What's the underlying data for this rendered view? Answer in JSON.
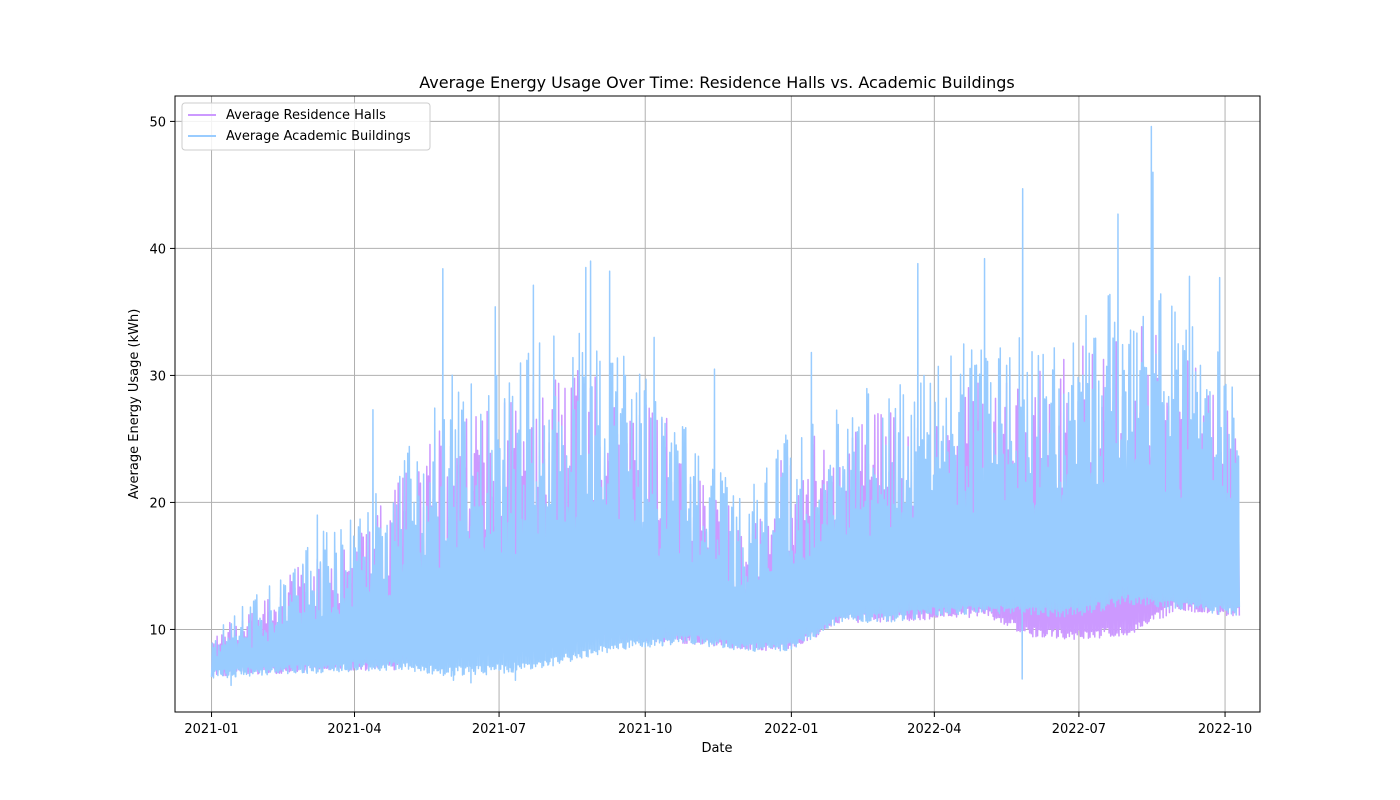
{
  "chart_data": {
    "type": "line",
    "title": "Average Energy Usage Over Time: Residence Halls vs. Academic Buildings",
    "xlabel": "Date",
    "ylabel": "Average Energy Usage (kWh)",
    "x_range": [
      "2020-12-09",
      "2022-10-23"
    ],
    "ylim": [
      3.5,
      52
    ],
    "x_ticks": [
      "2021-01",
      "2021-04",
      "2021-07",
      "2021-10",
      "2022-01",
      "2022-04",
      "2022-07",
      "2022-10"
    ],
    "y_ticks": [
      10,
      20,
      30,
      40,
      50
    ],
    "grid": true,
    "legend_position": "top-left",
    "data_range": [
      "2021-01-01",
      "2022-10-10"
    ],
    "series": [
      {
        "name": "Average Residence Halls",
        "color": "#cc99ff",
        "profile": [
          {
            "date": "2021-01-01",
            "low": 6.3,
            "high": 10.0
          },
          {
            "date": "2021-02-01",
            "low": 6.5,
            "high": 12.0
          },
          {
            "date": "2021-03-01",
            "low": 6.6,
            "high": 15.5
          },
          {
            "date": "2021-04-01",
            "low": 6.8,
            "high": 17.0
          },
          {
            "date": "2021-05-01",
            "low": 6.8,
            "high": 22.0
          },
          {
            "date": "2021-06-01",
            "low": 9.8,
            "high": 27.0
          },
          {
            "date": "2021-07-01",
            "low": 9.9,
            "high": 29.0
          },
          {
            "date": "2021-08-01",
            "low": 9.0,
            "high": 30.0
          },
          {
            "date": "2021-09-01",
            "low": 9.0,
            "high": 31.0
          },
          {
            "date": "2021-10-01",
            "low": 9.0,
            "high": 28.0
          },
          {
            "date": "2021-11-01",
            "low": 8.8,
            "high": 25.0
          },
          {
            "date": "2021-12-01",
            "low": 8.4,
            "high": 18.0
          },
          {
            "date": "2022-01-01",
            "low": 8.3,
            "high": 25.0
          },
          {
            "date": "2022-02-01",
            "low": 10.5,
            "high": 26.0
          },
          {
            "date": "2022-03-01",
            "low": 10.6,
            "high": 28.0
          },
          {
            "date": "2022-04-01",
            "low": 10.8,
            "high": 28.0
          },
          {
            "date": "2022-05-01",
            "low": 11.0,
            "high": 30.0
          },
          {
            "date": "2022-06-01",
            "low": 9.4,
            "high": 31.0
          },
          {
            "date": "2022-07-01",
            "low": 9.2,
            "high": 33.0
          },
          {
            "date": "2022-08-01",
            "low": 9.5,
            "high": 35.0
          },
          {
            "date": "2022-09-01",
            "low": 11.5,
            "high": 33.0
          },
          {
            "date": "2022-10-10",
            "low": 11.0,
            "high": 27.0
          }
        ]
      },
      {
        "name": "Average Academic Buildings",
        "color": "#99ccff",
        "profile": [
          {
            "date": "2021-01-01",
            "low": 6.0,
            "high": 10.0
          },
          {
            "date": "2021-02-01",
            "low": 6.4,
            "high": 13.0
          },
          {
            "date": "2021-03-01",
            "low": 6.5,
            "high": 16.5
          },
          {
            "date": "2021-04-01",
            "low": 6.7,
            "high": 20.0
          },
          {
            "date": "2021-05-01",
            "low": 6.8,
            "high": 24.0
          },
          {
            "date": "2021-06-01",
            "low": 6.3,
            "high": 30.0
          },
          {
            "date": "2021-07-01",
            "low": 6.5,
            "high": 31.0
          },
          {
            "date": "2021-08-01",
            "low": 7.0,
            "high": 33.0
          },
          {
            "date": "2021-09-01",
            "low": 8.0,
            "high": 35.0
          },
          {
            "date": "2021-10-01",
            "low": 8.6,
            "high": 30.0
          },
          {
            "date": "2021-11-01",
            "low": 8.8,
            "high": 26.0
          },
          {
            "date": "2021-12-01",
            "low": 8.3,
            "high": 20.0
          },
          {
            "date": "2022-01-01",
            "low": 8.2,
            "high": 26.0
          },
          {
            "date": "2022-02-01",
            "low": 10.5,
            "high": 28.0
          },
          {
            "date": "2022-03-01",
            "low": 10.5,
            "high": 30.0
          },
          {
            "date": "2022-04-01",
            "low": 11.0,
            "high": 31.0
          },
          {
            "date": "2022-05-01",
            "low": 11.2,
            "high": 34.0
          },
          {
            "date": "2022-06-01",
            "low": 11.0,
            "high": 33.0
          },
          {
            "date": "2022-07-01",
            "low": 11.0,
            "high": 35.0
          },
          {
            "date": "2022-08-01",
            "low": 12.0,
            "high": 38.0
          },
          {
            "date": "2022-09-01",
            "low": 11.5,
            "high": 36.0
          },
          {
            "date": "2022-10-10",
            "low": 11.0,
            "high": 30.0
          }
        ],
        "peaks": [
          {
            "date": "2021-03-08",
            "value": 19.0
          },
          {
            "date": "2021-04-12",
            "value": 27.3
          },
          {
            "date": "2021-05-26",
            "value": 38.4
          },
          {
            "date": "2021-06-28",
            "value": 35.4
          },
          {
            "date": "2021-07-22",
            "value": 37.1
          },
          {
            "date": "2021-08-24",
            "value": 38.5
          },
          {
            "date": "2021-08-27",
            "value": 39.0
          },
          {
            "date": "2021-09-08",
            "value": 38.2
          },
          {
            "date": "2021-10-06",
            "value": 33.0
          },
          {
            "date": "2021-11-13",
            "value": 30.5
          },
          {
            "date": "2022-01-13",
            "value": 31.8
          },
          {
            "date": "2022-03-21",
            "value": 38.8
          },
          {
            "date": "2022-05-02",
            "value": 39.2
          },
          {
            "date": "2022-05-26",
            "value": 44.7
          },
          {
            "date": "2022-07-25",
            "value": 42.7
          },
          {
            "date": "2022-08-15",
            "value": 49.6
          },
          {
            "date": "2022-08-16",
            "value": 46.0
          },
          {
            "date": "2022-09-08",
            "value": 37.8
          },
          {
            "date": "2022-09-27",
            "value": 37.7
          }
        ],
        "dips": [
          {
            "date": "2021-01-13",
            "value": 5.6
          },
          {
            "date": "2021-06-02",
            "value": 6.0
          },
          {
            "date": "2021-06-13",
            "value": 5.8
          },
          {
            "date": "2021-07-11",
            "value": 6.0
          },
          {
            "date": "2022-05-26",
            "value": 6.1
          }
        ]
      }
    ]
  }
}
